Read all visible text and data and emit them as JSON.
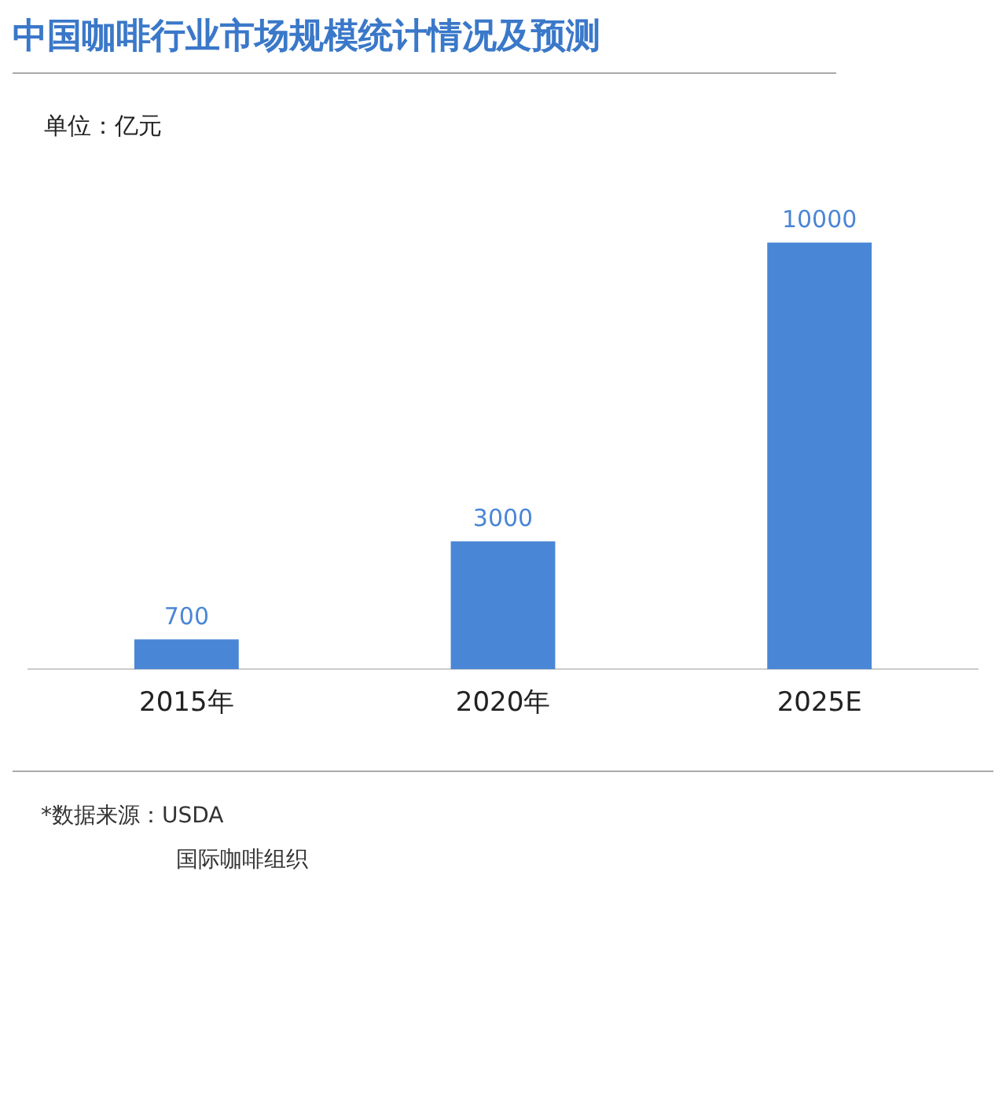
{
  "chart_data": {
    "type": "bar",
    "title": "中国咖啡行业市场规模统计情况及预测",
    "ylabel": "单位：亿元",
    "categories": [
      "2015年",
      "2020年",
      "2025E"
    ],
    "values": [
      700,
      3000,
      10000
    ],
    "color": "#4a86d6",
    "data_labels": true,
    "grid": false,
    "legend": false,
    "tick_labels": "x",
    "annotations": [
      "*数据来源：USDA",
      "国际咖啡组织"
    ]
  }
}
